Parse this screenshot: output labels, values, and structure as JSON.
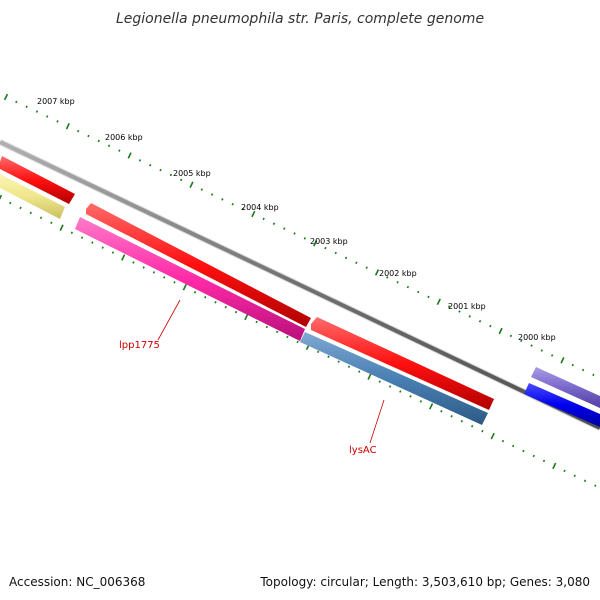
{
  "title": "Legionella pneumophila str. Paris, complete genome",
  "accession_text": "Accession: NC_006368",
  "topology_text": "Topology: circular; Length: 3,503,610 bp; Genes: 3,080",
  "scale_labels": [
    "2007 kbp",
    "2006 kbp",
    "2005 kbp",
    "2004 kbp",
    "2003 kbp",
    "2002 kbp",
    "2001 kbp",
    "2000 kbp"
  ],
  "gene_labels": {
    "lpp1775": "lpp1775",
    "lysac": "lysAC"
  },
  "colors": {
    "backbone": "#808080",
    "red_gene": "#ff1010",
    "pink_gene": "#ff2aa8",
    "steel_gene": "#4a7fb3",
    "yellow_gene": "#f0e68c",
    "purple_gene": "#7b68cc",
    "blue_gene": "#0000ee",
    "ticks": "#1a7a1a",
    "label_red": "#cc0000"
  }
}
